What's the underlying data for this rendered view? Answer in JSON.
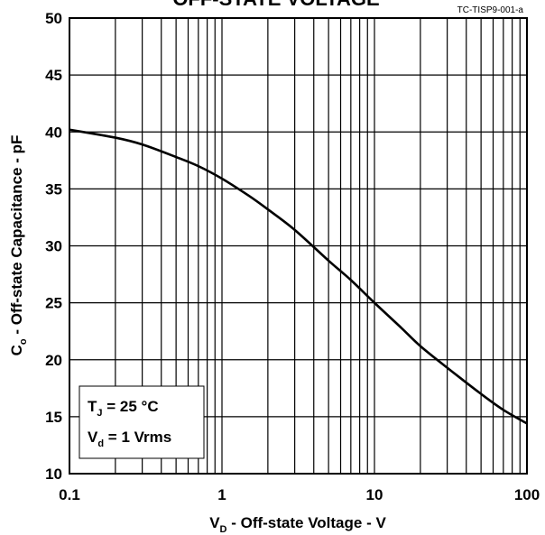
{
  "chart_data": {
    "type": "line",
    "title": "OFF-STATE VOLTAGE",
    "figure_ref": "TC-TISP9-001-a",
    "xlabel": {
      "main": "V",
      "sub": "D",
      "rest": " - Off-state Voltage - V"
    },
    "ylabel": {
      "main": "C",
      "sub": "o",
      "rest": " - Off-state Capacitance - pF"
    },
    "x_scale": "log",
    "xlim": [
      0.1,
      100
    ],
    "ylim": [
      10,
      50
    ],
    "x_ticks": [
      "0.1",
      "1",
      "10",
      "100"
    ],
    "y_ticks": [
      "10",
      "15",
      "20",
      "25",
      "30",
      "35",
      "40",
      "45",
      "50"
    ],
    "grid": true,
    "conditions": [
      {
        "main": "T",
        "sub": "J",
        "rest": " = 25 °C"
      },
      {
        "main": "V",
        "sub": "d",
        "rest": " = 1 Vrms"
      }
    ],
    "series": [
      {
        "x": [
          0.1,
          0.2,
          0.3,
          0.5,
          0.7,
          1,
          1.5,
          2,
          3,
          5,
          7,
          10,
          15,
          20,
          30,
          50,
          70,
          100
        ],
        "y": [
          40.2,
          39.5,
          38.9,
          37.8,
          37.0,
          35.9,
          34.4,
          33.2,
          31.4,
          28.7,
          27.0,
          25.0,
          22.8,
          21.2,
          19.3,
          17.0,
          15.6,
          14.4
        ]
      }
    ]
  }
}
